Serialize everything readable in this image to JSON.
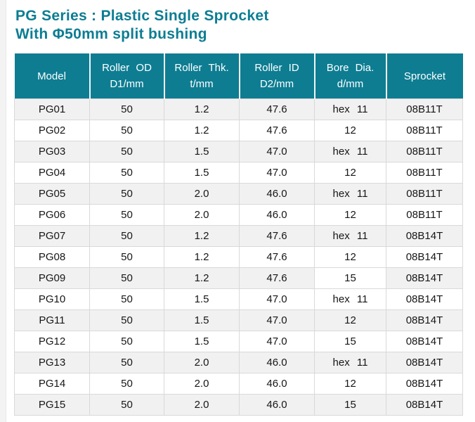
{
  "page": {
    "title_line1": "PG Series : Plastic Single Sprocket",
    "title_line2": "With Φ50mm split bushing"
  },
  "colors": {
    "teal_header": "#0e7d92",
    "title_teal": "#0c7d93",
    "row_alt_gray": "#f1f1f1",
    "row_white": "#ffffff",
    "cell_border": "#d9d9d9",
    "body_text": "#161616"
  },
  "table": {
    "columns": [
      {
        "label": "Model",
        "sub": ""
      },
      {
        "label": "Roller OD",
        "sub": "D1/mm"
      },
      {
        "label": "Roller Thk.",
        "sub": "t/mm"
      },
      {
        "label": "Roller ID",
        "sub": "D2/mm"
      },
      {
        "label": "Bore Dia.",
        "sub": "d/mm"
      },
      {
        "label": "Sprocket",
        "sub": ""
      }
    ],
    "rows": [
      [
        "PG01",
        "50",
        "1.2",
        "47.6",
        "hex 11",
        "08B11T"
      ],
      [
        "PG02",
        "50",
        "1.2",
        "47.6",
        "12",
        "08B11T"
      ],
      [
        "PG03",
        "50",
        "1.5",
        "47.0",
        "hex 11",
        "08B11T"
      ],
      [
        "PG04",
        "50",
        "1.5",
        "47.0",
        "12",
        "08B11T"
      ],
      [
        "PG05",
        "50",
        "2.0",
        "46.0",
        "hex 11",
        "08B11T"
      ],
      [
        "PG06",
        "50",
        "2.0",
        "46.0",
        "12",
        "08B11T"
      ],
      [
        "PG07",
        "50",
        "1.2",
        "47.6",
        "hex 11",
        "08B14T"
      ],
      [
        "PG08",
        "50",
        "1.2",
        "47.6",
        "12",
        "08B14T"
      ],
      [
        "PG09",
        "50",
        "1.2",
        "47.6",
        "15",
        "08B14T"
      ],
      [
        "PG10",
        "50",
        "1.5",
        "47.0",
        "hex 11",
        "08B14T"
      ],
      [
        "PG11",
        "50",
        "1.5",
        "47.0",
        "12",
        "08B14T"
      ],
      [
        "PG12",
        "50",
        "1.5",
        "47.0",
        "15",
        "08B14T"
      ],
      [
        "PG13",
        "50",
        "2.0",
        "46.0",
        "hex 11",
        "08B14T"
      ],
      [
        "PG14",
        "50",
        "2.0",
        "46.0",
        "12",
        "08B14T"
      ],
      [
        "PG15",
        "50",
        "2.0",
        "46.0",
        "15",
        "08B14T"
      ]
    ]
  }
}
